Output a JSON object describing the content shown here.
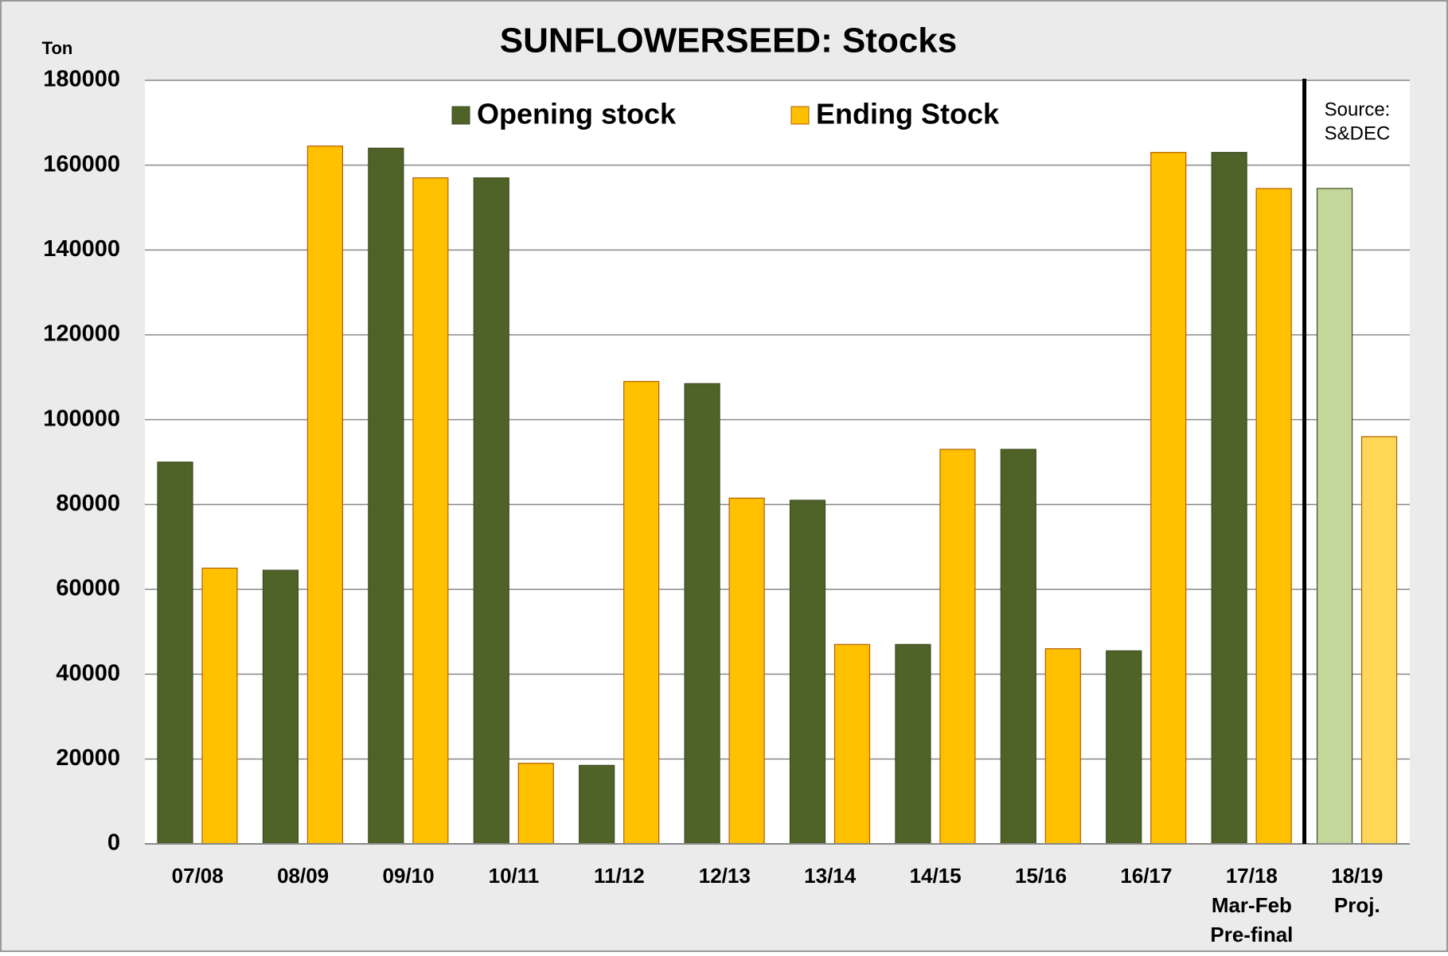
{
  "chart_data": {
    "type": "bar",
    "title": "SUNFLOWERSEED: Stocks",
    "y_label": "Ton",
    "annotation": [
      "Source:",
      "S&DEC"
    ],
    "categories": [
      "07/08",
      "08/09",
      "09/10",
      "10/11",
      "11/12",
      "12/13",
      "13/14",
      "14/15",
      "15/16",
      "16/17",
      [
        "17/18",
        "Mar-Feb",
        "Pre-final"
      ],
      [
        "18/19",
        "Proj."
      ]
    ],
    "series": [
      {
        "name": "Opening stock",
        "color": "#4f6228",
        "colors": [
          "#4f6228",
          "#4f6228",
          "#4f6228",
          "#4f6228",
          "#4f6228",
          "#4f6228",
          "#4f6228",
          "#4f6228",
          "#4f6228",
          "#4f6228",
          "#4f6228",
          "#c4d79b"
        ],
        "values": [
          90000,
          64500,
          164000,
          157000,
          18500,
          108500,
          81000,
          47000,
          93000,
          45500,
          163000,
          154500
        ]
      },
      {
        "name": "Ending Stock",
        "color": "#ffc000",
        "colors": [
          "#ffc000",
          "#ffc000",
          "#ffc000",
          "#ffc000",
          "#ffc000",
          "#ffc000",
          "#ffc000",
          "#ffc000",
          "#ffc000",
          "#ffc000",
          "#ffc000",
          "#ffd757"
        ],
        "values": [
          65000,
          164500,
          157000,
          19000,
          109000,
          81500,
          47000,
          93000,
          46000,
          163000,
          154500,
          96000
        ]
      }
    ],
    "ylim": [
      0,
      180000
    ],
    "yticks": [
      0,
      20000,
      40000,
      60000,
      80000,
      100000,
      120000,
      140000,
      160000,
      180000
    ],
    "grid": true
  }
}
